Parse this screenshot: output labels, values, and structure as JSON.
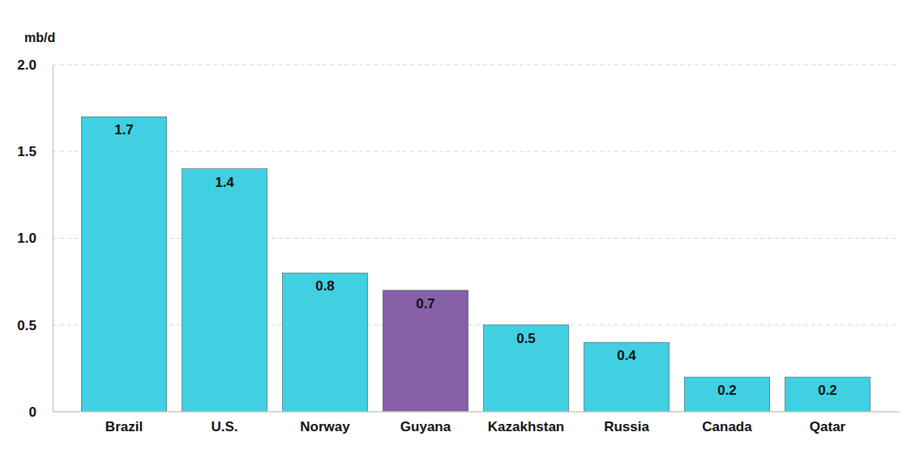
{
  "chart_data": {
    "type": "bar",
    "y_label": "mb/d",
    "categories": [
      "Brazil",
      "U.S.",
      "Norway",
      "Guyana",
      "Kazakhstan",
      "Russia",
      "Canada",
      "Qatar"
    ],
    "values": [
      1.7,
      1.4,
      0.8,
      0.7,
      0.5,
      0.4,
      0.2,
      0.2
    ],
    "colors": [
      "#40d0e2",
      "#40d0e2",
      "#40d0e2",
      "#8660a8",
      "#40d0e2",
      "#40d0e2",
      "#40d0e2",
      "#40d0e2"
    ],
    "ylim": [
      0,
      2
    ],
    "yticks": [
      0,
      0.5,
      {
        "value": 1,
        "label": "1.0"
      },
      1.5,
      {
        "value": 2,
        "label": "2.0"
      }
    ],
    "grid": true,
    "data_labels": true
  }
}
